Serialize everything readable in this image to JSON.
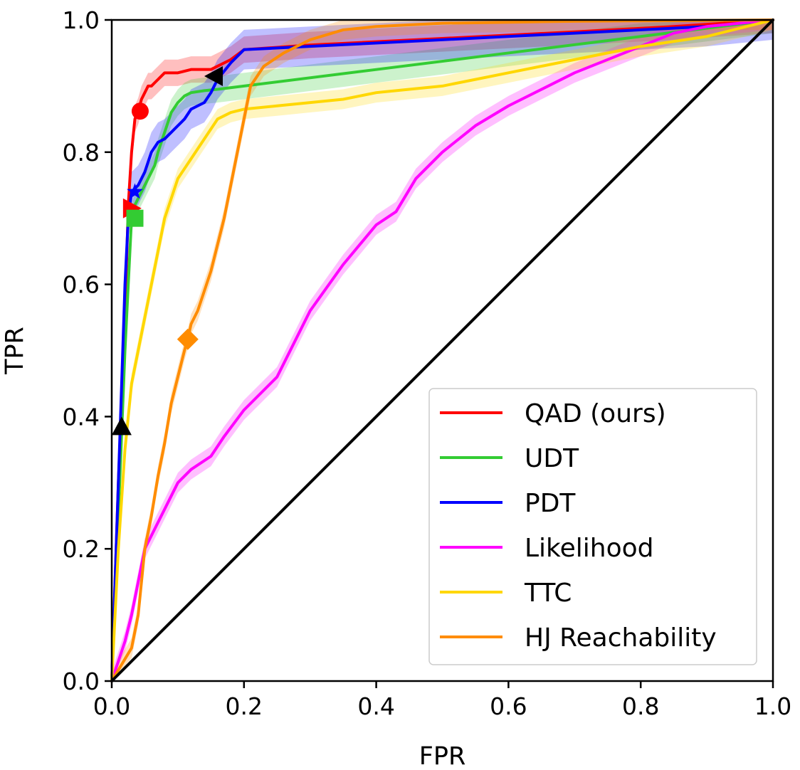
{
  "chart_data": {
    "type": "line",
    "title": "",
    "xlabel": "FPR",
    "ylabel": "TPR",
    "xlim": [
      0.0,
      1.0
    ],
    "ylim": [
      0.0,
      1.0
    ],
    "xticks": [
      "0.0",
      "0.2",
      "0.4",
      "0.6",
      "0.8",
      "1.0"
    ],
    "yticks": [
      "0.0",
      "0.2",
      "0.4",
      "0.6",
      "0.8",
      "1.0"
    ],
    "grid": false,
    "legend_position": "bottom-right",
    "series": [
      {
        "name": "QAD (ours)",
        "color": "#ff0000",
        "band": 0.02,
        "x": [
          0.0,
          0.01,
          0.02,
          0.025,
          0.03,
          0.035,
          0.04,
          0.045,
          0.05,
          0.055,
          0.06,
          0.065,
          0.07,
          0.08,
          0.09,
          0.1,
          0.12,
          0.15,
          0.16,
          0.18,
          0.2,
          0.3,
          0.5,
          0.7,
          0.85,
          1.0
        ],
        "y": [
          0.0,
          0.3,
          0.55,
          0.72,
          0.8,
          0.85,
          0.862,
          0.88,
          0.89,
          0.9,
          0.9,
          0.905,
          0.91,
          0.92,
          0.92,
          0.92,
          0.925,
          0.925,
          0.93,
          0.94,
          0.955,
          0.962,
          0.972,
          0.982,
          0.99,
          1.0
        ]
      },
      {
        "name": "UDT",
        "color": "#33cc33",
        "band": 0.02,
        "x": [
          0.0,
          0.02,
          0.03,
          0.035,
          0.04,
          0.045,
          0.05,
          0.055,
          0.06,
          0.065,
          0.07,
          0.08,
          0.09,
          0.1,
          0.11,
          0.12,
          0.14,
          0.16,
          0.2,
          0.4,
          0.6,
          0.8,
          0.92,
          1.0
        ],
        "y": [
          0.0,
          0.5,
          0.7,
          0.72,
          0.73,
          0.74,
          0.75,
          0.76,
          0.77,
          0.78,
          0.8,
          0.83,
          0.86,
          0.875,
          0.885,
          0.89,
          0.893,
          0.895,
          0.9,
          0.925,
          0.95,
          0.975,
          0.99,
          1.0
        ]
      },
      {
        "name": "PDT",
        "color": "#0000ff",
        "band": 0.03,
        "x": [
          0.0,
          0.005,
          0.01,
          0.015,
          0.02,
          0.025,
          0.03,
          0.035,
          0.04,
          0.05,
          0.06,
          0.07,
          0.08,
          0.09,
          0.1,
          0.11,
          0.12,
          0.13,
          0.14,
          0.15,
          0.16,
          0.18,
          0.2,
          0.3,
          0.5,
          0.7,
          0.9,
          1.0
        ],
        "y": [
          0.0,
          0.15,
          0.3,
          0.45,
          0.6,
          0.7,
          0.74,
          0.745,
          0.75,
          0.77,
          0.8,
          0.815,
          0.82,
          0.83,
          0.84,
          0.85,
          0.865,
          0.87,
          0.875,
          0.89,
          0.91,
          0.935,
          0.955,
          0.96,
          0.97,
          0.98,
          0.99,
          1.0
        ]
      },
      {
        "name": "Likelihood",
        "color": "#ff00ff",
        "band": 0.015,
        "x": [
          0.0,
          0.02,
          0.03,
          0.04,
          0.05,
          0.06,
          0.07,
          0.08,
          0.1,
          0.12,
          0.15,
          0.17,
          0.2,
          0.25,
          0.3,
          0.35,
          0.4,
          0.43,
          0.46,
          0.5,
          0.55,
          0.6,
          0.7,
          0.8,
          0.85,
          0.9,
          1.0
        ],
        "y": [
          0.0,
          0.06,
          0.1,
          0.15,
          0.2,
          0.22,
          0.24,
          0.26,
          0.3,
          0.32,
          0.34,
          0.37,
          0.41,
          0.46,
          0.56,
          0.63,
          0.69,
          0.71,
          0.76,
          0.8,
          0.84,
          0.87,
          0.92,
          0.96,
          0.98,
          0.99,
          1.0
        ]
      },
      {
        "name": "TTC",
        "color": "#ffd700",
        "band": 0.015,
        "x": [
          0.0,
          0.01,
          0.02,
          0.03,
          0.05,
          0.07,
          0.08,
          0.09,
          0.1,
          0.12,
          0.14,
          0.16,
          0.18,
          0.2,
          0.25,
          0.3,
          0.35,
          0.4,
          0.45,
          0.5,
          0.55,
          0.6,
          0.7,
          0.8,
          0.9,
          1.0
        ],
        "y": [
          0.0,
          0.2,
          0.35,
          0.45,
          0.55,
          0.65,
          0.7,
          0.73,
          0.76,
          0.79,
          0.82,
          0.85,
          0.86,
          0.865,
          0.87,
          0.875,
          0.88,
          0.89,
          0.895,
          0.9,
          0.91,
          0.92,
          0.94,
          0.96,
          0.975,
          1.0
        ]
      },
      {
        "name": "HJ Reachability",
        "color": "#ff8c00",
        "band": 0.015,
        "x": [
          0.0,
          0.03,
          0.04,
          0.05,
          0.06,
          0.07,
          0.08,
          0.09,
          0.1,
          0.11,
          0.115,
          0.12,
          0.13,
          0.14,
          0.15,
          0.17,
          0.19,
          0.21,
          0.23,
          0.26,
          0.3,
          0.35,
          0.4,
          0.5,
          0.7,
          1.0
        ],
        "y": [
          0.0,
          0.05,
          0.1,
          0.2,
          0.25,
          0.31,
          0.36,
          0.42,
          0.46,
          0.5,
          0.517,
          0.54,
          0.56,
          0.59,
          0.62,
          0.7,
          0.8,
          0.9,
          0.93,
          0.95,
          0.97,
          0.985,
          0.99,
          0.995,
          0.998,
          1.0
        ]
      },
      {
        "name": "Diagonal",
        "color": "#000000",
        "band": 0,
        "in_legend": false,
        "x": [
          0.0,
          1.0
        ],
        "y": [
          0.0,
          1.0
        ]
      }
    ],
    "markers": [
      {
        "series": "QAD (ours)",
        "shape": "circle",
        "color": "#ff0000",
        "x": 0.043,
        "y": 0.862
      },
      {
        "series": "QAD (ours)",
        "shape": "triangle-right",
        "color": "#ff0000",
        "x": 0.03,
        "y": 0.715
      },
      {
        "series": "UDT",
        "shape": "square",
        "color": "#33cc33",
        "x": 0.035,
        "y": 0.7
      },
      {
        "series": "PDT",
        "shape": "star",
        "color": "#0000ff",
        "x": 0.035,
        "y": 0.74
      },
      {
        "series": "PDT",
        "shape": "triangle-up",
        "color": "#000000",
        "x": 0.015,
        "y": 0.385
      },
      {
        "series": "PDT",
        "shape": "triangle-left",
        "color": "#000000",
        "x": 0.155,
        "y": 0.915
      },
      {
        "series": "HJ Reachability",
        "shape": "diamond",
        "color": "#ff8c00",
        "x": 0.115,
        "y": 0.517
      }
    ]
  }
}
